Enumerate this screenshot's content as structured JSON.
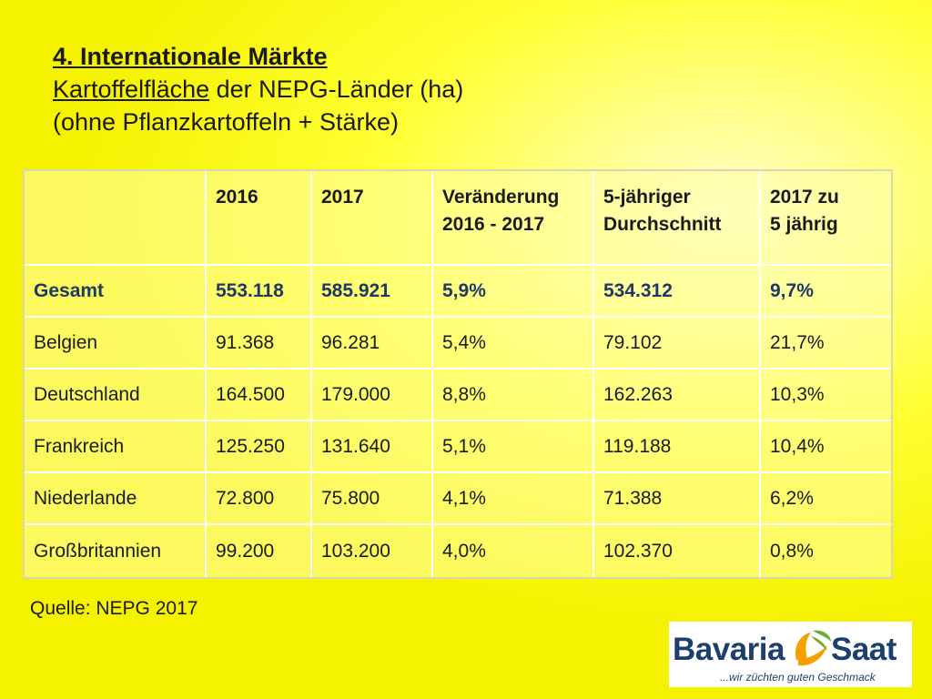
{
  "title": {
    "line1": "4. Internationale Märkte",
    "line2_underlined": "Kartoffelfläche",
    "line2_rest": " der NEPG-Länder (ha)",
    "line3": "(ohne Pflanzkartoffeln + Stärke)"
  },
  "table": {
    "headers": [
      "",
      "2016",
      "2017",
      "Veränderung 2016 - 2017",
      "5-jähriger Durchschnitt",
      "2017 zu 5 jährig"
    ],
    "header_lines": {
      "col3": [
        "Veränderung",
        "2016 - 2017"
      ],
      "col4": [
        "5-jähriger",
        "Durchschnitt"
      ],
      "col5": [
        "2017 zu",
        "5 jährig"
      ]
    },
    "rows": [
      [
        "Gesamt",
        "553.118",
        "585.921",
        "5,9%",
        "534.312",
        "9,7%"
      ],
      [
        "Belgien",
        "91.368",
        "96.281",
        "5,4%",
        "79.102",
        "21,7%"
      ],
      [
        "Deutschland",
        "164.500",
        "179.000",
        "8,8%",
        "162.263",
        "10,3%"
      ],
      [
        "Frankreich",
        "125.250",
        "131.640",
        "5,1%",
        "119.188",
        "10,4%"
      ],
      [
        "Niederlande",
        "72.800",
        "75.800",
        "4,1%",
        "71.388",
        "6,2%"
      ],
      [
        "Großbritannien",
        "99.200",
        "103.200",
        "4,0%",
        "102.370",
        "0,8%"
      ]
    ]
  },
  "source": "Quelle: NEPG 2017",
  "logo": {
    "brand_left": "Bavaria",
    "brand_right": "Saat",
    "slogan": "...wir züchten guten Geschmack",
    "icon": "leaf-swoosh-icon"
  },
  "colors": {
    "total_row": "#1f3864",
    "logo_navy": "#1e3f6e",
    "logo_orange": "#f5a000",
    "logo_green": "#6fae2e"
  }
}
